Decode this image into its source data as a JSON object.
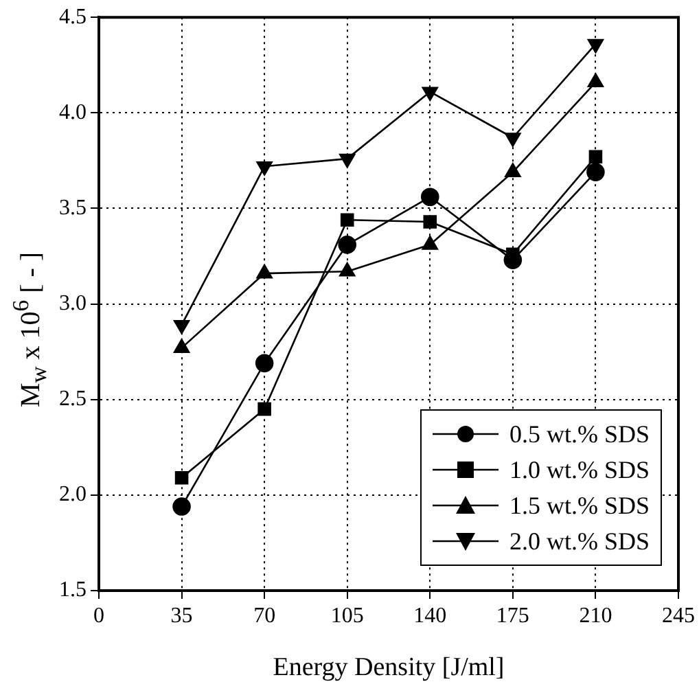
{
  "chart_data": {
    "type": "line",
    "xlabel": "Energy Density [J/ml]",
    "ylabel": "M$_{w}$ x 10$^{6}$ [ - ]",
    "x": [
      35,
      70,
      105,
      140,
      175,
      210
    ],
    "xlim": [
      0,
      245
    ],
    "xticks": [
      0,
      35,
      70,
      105,
      140,
      175,
      210,
      245
    ],
    "ylim": [
      1.5,
      4.5
    ],
    "yticks": [
      {
        "value": 1.5,
        "label": "1.5"
      },
      {
        "value": 2,
        "label": "2.0"
      },
      {
        "value": 2.5,
        "label": "2.5"
      },
      {
        "value": 3,
        "label": "3.0"
      },
      {
        "value": 3.5,
        "label": "3.5"
      },
      {
        "value": 4,
        "label": "4.0"
      },
      {
        "value": 4.5,
        "label": "4.5"
      }
    ],
    "grid": true,
    "legend": "bottom right",
    "line_style": "solid",
    "series": [
      {
        "name": "0.5 wt.% SDS",
        "color": "#000000",
        "marker": "circle",
        "values": [
          1.94,
          2.69,
          3.31,
          3.56,
          3.23,
          3.69
        ]
      },
      {
        "name": "1.0 wt.% SDS",
        "color": "#000000",
        "marker": "square",
        "values": [
          2.09,
          2.45,
          3.44,
          3.43,
          3.26,
          3.77
        ]
      },
      {
        "name": "1.5 wt.% SDS",
        "color": "#000000",
        "marker": "triangle",
        "values": [
          2.77,
          3.16,
          3.17,
          3.31,
          3.69,
          4.16
        ]
      },
      {
        "name": "2.0 wt.% SDS",
        "color": "#000000",
        "marker": "triangle-down",
        "values": [
          2.89,
          3.72,
          3.76,
          4.11,
          3.87,
          4.36
        ]
      }
    ]
  }
}
